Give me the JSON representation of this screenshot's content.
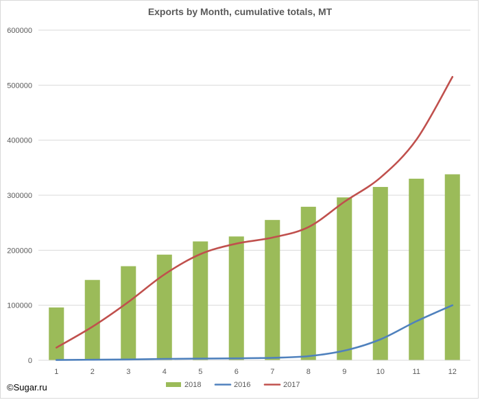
{
  "chart_data": {
    "type": "bar",
    "title": "Exports by Month, cumulative totals, MT",
    "xlabel": "",
    "ylabel": "",
    "categories": [
      "1",
      "2",
      "3",
      "4",
      "5",
      "6",
      "7",
      "8",
      "9",
      "10",
      "11",
      "12"
    ],
    "ylim": [
      0,
      600000
    ],
    "yticks": [
      "0",
      "100000",
      "200000",
      "300000",
      "400000",
      "500000",
      "600000"
    ],
    "grid": true,
    "legend_position": "bottom",
    "series": [
      {
        "name": "2018",
        "kind": "bar",
        "color": "#9bbb59",
        "values": [
          96000,
          146000,
          171000,
          192000,
          216000,
          225000,
          255000,
          279000,
          296000,
          315000,
          330000,
          338000
        ]
      },
      {
        "name": "2016",
        "kind": "line",
        "color": "#4f81bd",
        "values": [
          500,
          1000,
          1500,
          2500,
          3000,
          3500,
          4500,
          7500,
          17500,
          38000,
          71000,
          100000
        ]
      },
      {
        "name": "2017",
        "kind": "line",
        "color": "#c0504d",
        "values": [
          23000,
          61000,
          106000,
          156000,
          193000,
          212000,
          223000,
          242000,
          288000,
          332000,
          401000,
          515000
        ]
      }
    ]
  },
  "footer": {
    "copyright": "©Sugar.ru"
  }
}
